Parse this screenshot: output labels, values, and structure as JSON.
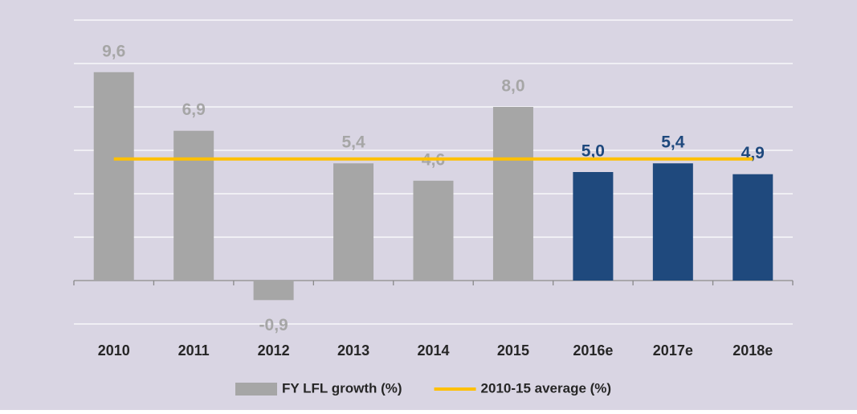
{
  "chart_data": {
    "type": "bar",
    "categories": [
      "2010",
      "2011",
      "2012",
      "2013",
      "2014",
      "2015",
      "2016e",
      "2017e",
      "2018e"
    ],
    "series": [
      {
        "name": "FY LFL growth (%)",
        "type": "bar",
        "color": "#a6a6a6",
        "colors": [
          "#a6a6a6",
          "#a6a6a6",
          "#a6a6a6",
          "#a6a6a6",
          "#a6a6a6",
          "#a6a6a6",
          "#1f497d",
          "#1f497d",
          "#1f497d"
        ],
        "values": [
          9.6,
          6.9,
          -0.9,
          5.4,
          4.6,
          8.0,
          5.0,
          5.4,
          4.9
        ],
        "value_labels": [
          "9,6",
          "6,9",
          "-0,9",
          "5,4",
          "4,6",
          "8,0",
          "5,0",
          "5,4",
          "4,9"
        ]
      },
      {
        "name": "2010-15 average (%)",
        "type": "line",
        "color": "#ffc000",
        "values": [
          5.6,
          5.6,
          5.6,
          5.6,
          5.6,
          5.6,
          5.6,
          5.6,
          5.6
        ]
      }
    ],
    "ylim": [
      -2,
      12
    ],
    "yticks": [
      -2,
      0,
      2,
      4,
      6,
      8,
      10,
      12
    ],
    "grid": true,
    "legend": "bottom"
  }
}
